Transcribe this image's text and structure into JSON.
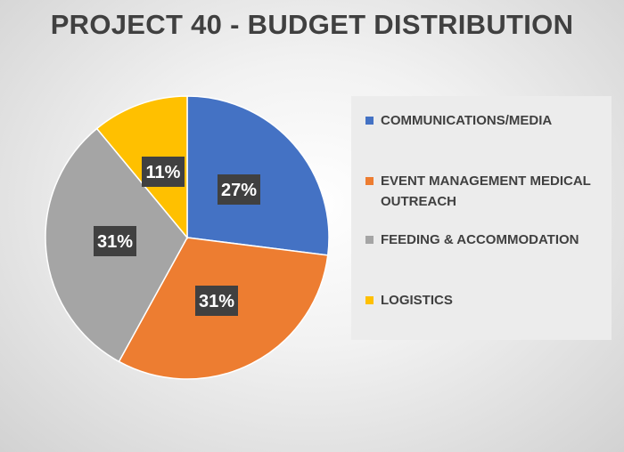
{
  "chart_data": {
    "type": "pie",
    "title": "PROJECT 40 - BUDGET DISTRIBUTION",
    "categories": [
      "COMMUNICATIONS/MEDIA",
      "EVENT MANAGEMENT MEDICAL OUTREACH",
      "FEEDING & ACCOMMODATION",
      "LOGISTICS"
    ],
    "values": [
      27,
      31,
      31,
      11
    ],
    "data_labels": [
      "27%",
      "31%",
      "31%",
      "11%"
    ],
    "colors": [
      "#4472C4",
      "#ED7D31",
      "#A5A5A5",
      "#FFC000"
    ],
    "legend_position": "right"
  }
}
